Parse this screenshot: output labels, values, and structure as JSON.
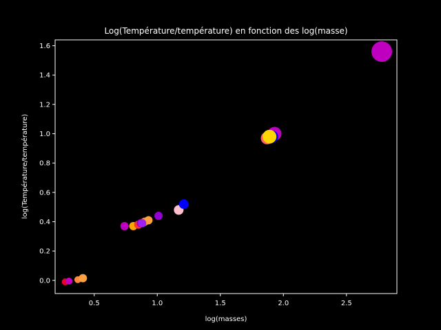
{
  "chart_data": {
    "type": "scatter",
    "title": "Log(Température/température) en fonction des log(masse)",
    "xlabel": "log(masses)",
    "ylabel": "log(Température/température)",
    "xlim": [
      0.19,
      2.9
    ],
    "ylim": [
      -0.09,
      1.64
    ],
    "xticks": [
      0.5,
      1.0,
      1.5,
      2.0,
      2.5
    ],
    "xtick_labels": [
      "0.5",
      "1.0",
      "1.5",
      "2.0",
      "2.5"
    ],
    "yticks": [
      0.0,
      0.2,
      0.4,
      0.6,
      0.8,
      1.0,
      1.2,
      1.4,
      1.6
    ],
    "ytick_labels": [
      "0.0",
      "0.2",
      "0.4",
      "0.6",
      "0.8",
      "1.0",
      "1.2",
      "1.4",
      "1.6"
    ],
    "grid": false,
    "background": "#000000",
    "foreground": "#ffffff",
    "points": [
      {
        "x": 0.27,
        "y": -0.01,
        "color": "#e8002a",
        "size": 5
      },
      {
        "x": 0.3,
        "y": -0.005,
        "color": "#c000c0",
        "size": 5
      },
      {
        "x": 0.37,
        "y": 0.005,
        "color": "#ff8c40",
        "size": 5
      },
      {
        "x": 0.41,
        "y": 0.015,
        "color": "#ffa040",
        "size": 6
      },
      {
        "x": 0.74,
        "y": 0.37,
        "color": "#c000c0",
        "size": 6
      },
      {
        "x": 0.81,
        "y": 0.37,
        "color": "#ffa500",
        "size": 6
      },
      {
        "x": 0.85,
        "y": 0.38,
        "color": "#ff3030",
        "size": 6
      },
      {
        "x": 0.87,
        "y": 0.39,
        "color": "#9400d3",
        "size": 6
      },
      {
        "x": 0.9,
        "y": 0.4,
        "color": "#ff8c40",
        "size": 6
      },
      {
        "x": 0.93,
        "y": 0.41,
        "color": "#ffa040",
        "size": 6
      },
      {
        "x": 0.88,
        "y": 0.39,
        "color": "#a020f0",
        "size": 6
      },
      {
        "x": 1.01,
        "y": 0.44,
        "color": "#9400d3",
        "size": 6
      },
      {
        "x": 1.17,
        "y": 0.48,
        "color": "#ffc0cb",
        "size": 7
      },
      {
        "x": 1.21,
        "y": 0.52,
        "color": "#0000ff",
        "size": 7
      },
      {
        "x": 1.87,
        "y": 0.97,
        "color": "#ff6060",
        "size": 9
      },
      {
        "x": 1.93,
        "y": 1.0,
        "color": "#c000c0",
        "size": 10
      },
      {
        "x": 1.91,
        "y": 0.98,
        "color": "#0000ff",
        "size": 9
      },
      {
        "x": 1.89,
        "y": 0.98,
        "color": "#ffd700",
        "size": 10
      },
      {
        "x": 2.78,
        "y": 1.56,
        "color": "#c000c0",
        "size": 15
      }
    ]
  }
}
